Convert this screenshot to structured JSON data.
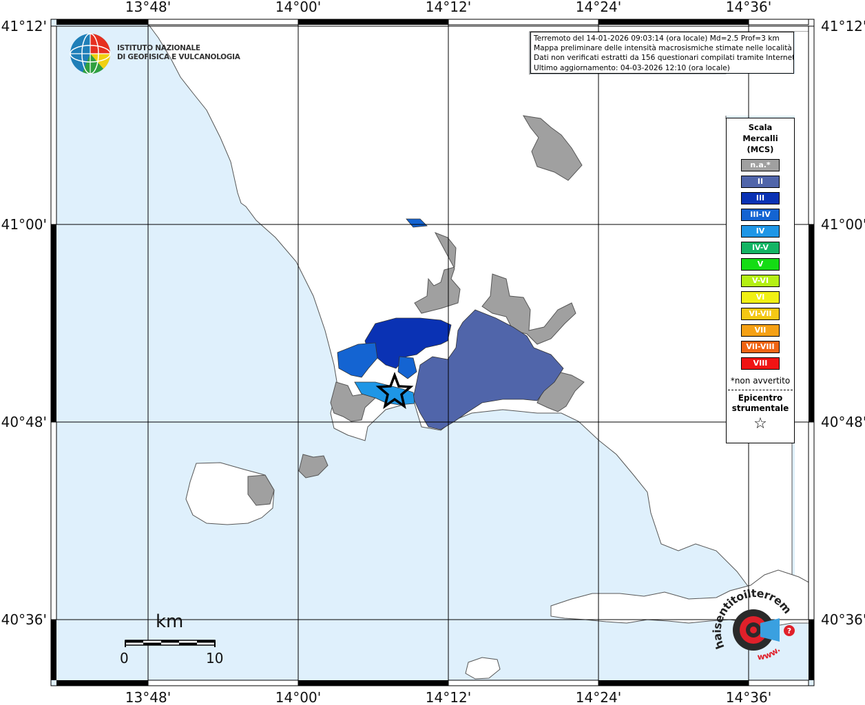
{
  "map": {
    "top_longitude_labels": [
      "13°48'",
      "14°00'",
      "14°12'",
      "14°24'",
      "14°36'"
    ],
    "bottom_longitude_labels": [
      "13°48'",
      "14°00'",
      "14°12'",
      "14°24'",
      "14°36'"
    ],
    "left_latitude_labels": [
      "41°12'",
      "41°00'",
      "40°48'",
      "40°36'"
    ],
    "right_latitude_labels": [
      "41°12'",
      "41°00'",
      "40°48'",
      "40°36'"
    ],
    "colors": {
      "sea": "#dff0fc",
      "land": "#ffffff",
      "not_available": "#a0a0a0",
      "II": "#5065aa",
      "III": "#0a32b4",
      "III-IV": "#1464d2",
      "IV": "#1e96e6"
    }
  },
  "logo": {
    "line1": "ISTITUTO NAZIONALE",
    "line2": "DI GEOFISICA E VULCANOLOGIA"
  },
  "info": {
    "line1": "Terremoto del 14-01-2026 09:03:14 (ora locale) Md=2.5 Prof=3 km",
    "line2": "Mappa preliminare delle intensità macrosismiche stimate nelle località",
    "line3": "Dati non verificati estratti da 156 questionari compilati tramite Internet.",
    "line4": "Ultimo aggiornamento: 04-03-2026 12:10 (ora locale)"
  },
  "legend": {
    "title1": "Scala",
    "title2": "Mercalli",
    "title3": "(MCS)",
    "items": [
      {
        "label": "n.a.*",
        "color": "#a0a0a0"
      },
      {
        "label": "II",
        "color": "#5065aa"
      },
      {
        "label": "III",
        "color": "#0a32b4"
      },
      {
        "label": "III-IV",
        "color": "#1464d2"
      },
      {
        "label": "IV",
        "color": "#1e96e6"
      },
      {
        "label": "IV-V",
        "color": "#14b464"
      },
      {
        "label": "V",
        "color": "#14dc14"
      },
      {
        "label": "V-VI",
        "color": "#b4f014"
      },
      {
        "label": "VI",
        "color": "#f0f014"
      },
      {
        "label": "VI-VII",
        "color": "#f5c814"
      },
      {
        "label": "VII",
        "color": "#f5a014"
      },
      {
        "label": "VII-VIII",
        "color": "#f06414"
      },
      {
        "label": "VIII",
        "color": "#f01414"
      }
    ],
    "note": "*non avvertito",
    "epicenter1": "Epicentro",
    "epicenter2": "strumentale",
    "star": "☆"
  },
  "scale_bar": {
    "unit": "km",
    "start": "0",
    "end": "10"
  },
  "brand": {
    "text": "haisentitoilterremoto.it",
    "www": "www."
  }
}
